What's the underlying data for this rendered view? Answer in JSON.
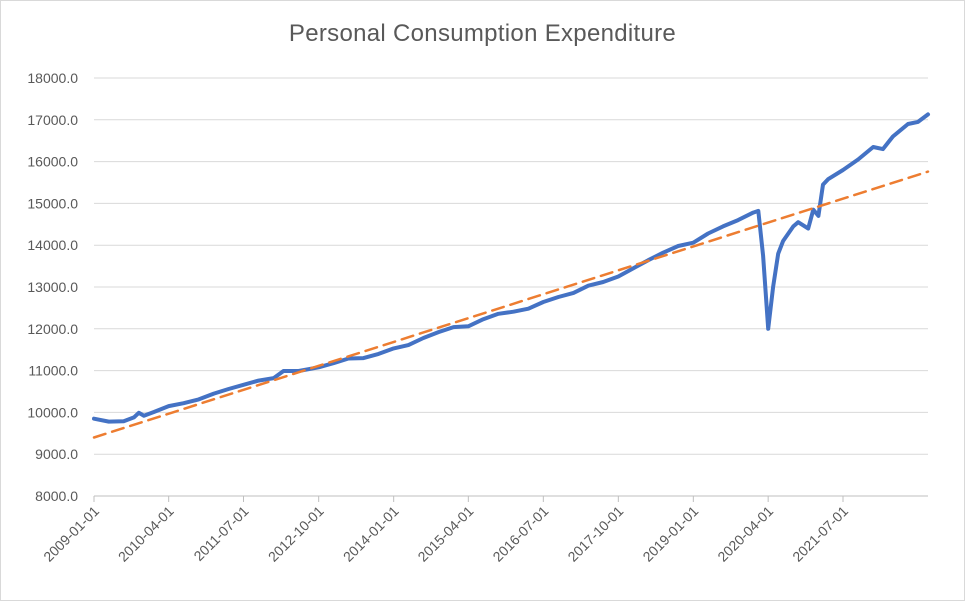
{
  "chart_data": {
    "type": "line",
    "title": "Personal Consumption Expenditure",
    "xlabel": "",
    "ylabel": "",
    "ylim": [
      8000,
      18000
    ],
    "yticks": [
      "8000.0",
      "9000.0",
      "10000.0",
      "11000.0",
      "12000.0",
      "13000.0",
      "14000.0",
      "15000.0",
      "16000.0",
      "17000.0",
      "18000.0"
    ],
    "xticks": [
      "2009-01-01",
      "2010-04-01",
      "2011-07-01",
      "2012-10-01",
      "2014-01-01",
      "2015-04-01",
      "2016-07-01",
      "2017-10-01",
      "2019-01-01",
      "2020-04-01",
      "2021-07-01"
    ],
    "grid": true,
    "legend": "none",
    "series": [
      {
        "style": "solid",
        "color": "#4472C4",
        "points": [
          [
            "2009-01-01",
            9850
          ],
          [
            "2009-04-01",
            9780
          ],
          [
            "2009-07-01",
            9790
          ],
          [
            "2009-09-01",
            9880
          ],
          [
            "2009-10-01",
            9990
          ],
          [
            "2009-11-01",
            9920
          ],
          [
            "2010-01-01",
            10010
          ],
          [
            "2010-04-01",
            10150
          ],
          [
            "2010-07-01",
            10220
          ],
          [
            "2010-10-01",
            10310
          ],
          [
            "2011-01-01",
            10450
          ],
          [
            "2011-04-01",
            10560
          ],
          [
            "2011-07-01",
            10660
          ],
          [
            "2011-10-01",
            10760
          ],
          [
            "2012-01-01",
            10820
          ],
          [
            "2012-03-01",
            10990
          ],
          [
            "2012-06-01",
            10990
          ],
          [
            "2012-10-01",
            11080
          ],
          [
            "2013-01-01",
            11180
          ],
          [
            "2013-04-01",
            11290
          ],
          [
            "2013-07-01",
            11300
          ],
          [
            "2013-10-01",
            11400
          ],
          [
            "2014-01-01",
            11530
          ],
          [
            "2014-04-01",
            11610
          ],
          [
            "2014-07-01",
            11780
          ],
          [
            "2014-10-01",
            11920
          ],
          [
            "2015-01-01",
            12040
          ],
          [
            "2015-04-01",
            12060
          ],
          [
            "2015-07-01",
            12230
          ],
          [
            "2015-10-01",
            12360
          ],
          [
            "2016-01-01",
            12410
          ],
          [
            "2016-04-01",
            12480
          ],
          [
            "2016-07-01",
            12640
          ],
          [
            "2016-10-01",
            12760
          ],
          [
            "2017-01-01",
            12860
          ],
          [
            "2017-04-01",
            13030
          ],
          [
            "2017-07-01",
            13120
          ],
          [
            "2017-10-01",
            13250
          ],
          [
            "2018-01-01",
            13450
          ],
          [
            "2018-04-01",
            13640
          ],
          [
            "2018-07-01",
            13820
          ],
          [
            "2018-10-01",
            13980
          ],
          [
            "2019-01-01",
            14060
          ],
          [
            "2019-04-01",
            14280
          ],
          [
            "2019-07-01",
            14450
          ],
          [
            "2019-10-01",
            14600
          ],
          [
            "2020-01-01",
            14780
          ],
          [
            "2020-02-01",
            14820
          ],
          [
            "2020-03-01",
            13750
          ],
          [
            "2020-04-01",
            12000
          ],
          [
            "2020-05-01",
            13000
          ],
          [
            "2020-06-01",
            13800
          ],
          [
            "2020-07-01",
            14100
          ],
          [
            "2020-09-01",
            14450
          ],
          [
            "2020-10-01",
            14550
          ],
          [
            "2020-12-01",
            14400
          ],
          [
            "2021-01-01",
            14850
          ],
          [
            "2021-02-01",
            14700
          ],
          [
            "2021-03-01",
            15450
          ],
          [
            "2021-04-01",
            15580
          ],
          [
            "2021-07-01",
            15800
          ],
          [
            "2021-10-01",
            16050
          ],
          [
            "2022-01-01",
            16350
          ],
          [
            "2022-03-01",
            16300
          ],
          [
            "2022-05-01",
            16600
          ],
          [
            "2022-08-01",
            16900
          ],
          [
            "2022-10-01",
            16950
          ],
          [
            "2022-12-01",
            17130
          ]
        ]
      },
      {
        "style": "dashed",
        "color": "#ED7D31",
        "points": [
          [
            "2009-01-01",
            9400
          ],
          [
            "2022-12-01",
            15760
          ]
        ]
      }
    ]
  }
}
